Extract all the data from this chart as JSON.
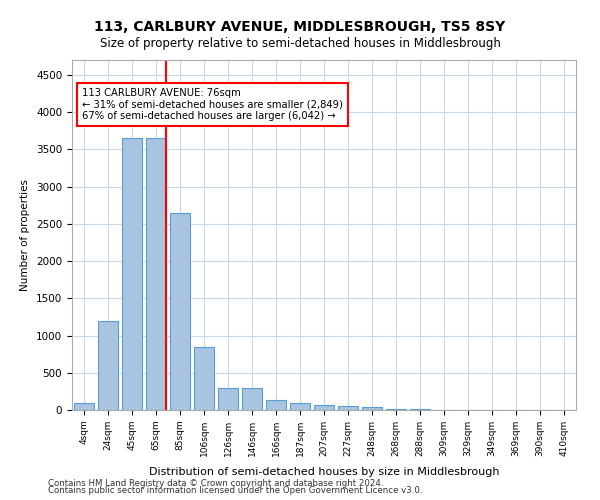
{
  "title": "113, CARLBURY AVENUE, MIDDLESBROUGH, TS5 8SY",
  "subtitle": "Size of property relative to semi-detached houses in Middlesbrough",
  "xlabel": "Distribution of semi-detached houses by size in Middlesbrough",
  "ylabel": "Number of properties",
  "categories": [
    "4sqm",
    "24sqm",
    "45sqm",
    "65sqm",
    "85sqm",
    "106sqm",
    "126sqm",
    "146sqm",
    "166sqm",
    "187sqm",
    "207sqm",
    "227sqm",
    "248sqm",
    "268sqm",
    "288sqm",
    "309sqm",
    "329sqm",
    "349sqm",
    "369sqm",
    "390sqm",
    "410sqm"
  ],
  "values": [
    100,
    1200,
    3650,
    3650,
    2650,
    850,
    300,
    300,
    140,
    90,
    70,
    55,
    35,
    15,
    10,
    5,
    3,
    2,
    1,
    1,
    0
  ],
  "bar_color": "#a8c4e0",
  "bar_edge_color": "#5a9fd4",
  "red_line_x": 3,
  "property_size": "76sqm",
  "pct_smaller": 31,
  "n_smaller": "2,849",
  "pct_larger": 67,
  "n_larger": "6,042",
  "annotation_text": "113 CARLBURY AVENUE: 76sqm\n← 31% of semi-detached houses are smaller (2,849)\n67% of semi-detached houses are larger (6,042) →",
  "ylim": [
    0,
    4700
  ],
  "yticks": [
    0,
    500,
    1000,
    1500,
    2000,
    2500,
    3000,
    3500,
    4000,
    4500
  ],
  "footer1": "Contains HM Land Registry data © Crown copyright and database right 2024.",
  "footer2": "Contains public sector information licensed under the Open Government Licence v3.0.",
  "background_color": "#ffffff",
  "grid_color": "#c8d8e8"
}
